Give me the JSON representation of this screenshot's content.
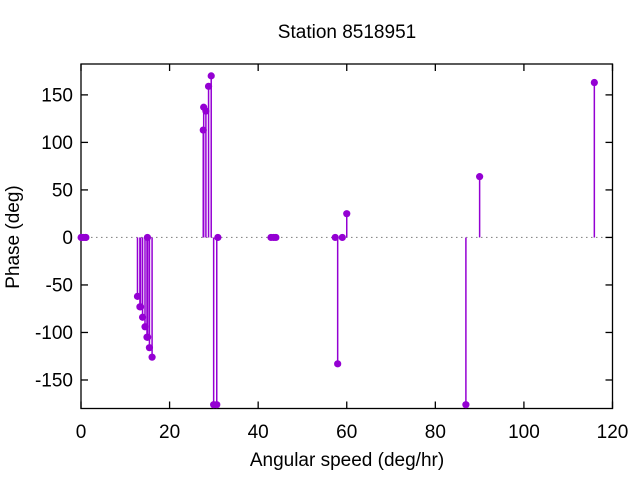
{
  "chart_data": {
    "type": "stem",
    "title": "Station 8518951",
    "xlabel": "Angular speed (deg/hr)",
    "ylabel": "Phase (deg)",
    "xlim": [
      0,
      120
    ],
    "ylim": [
      -180,
      182.5
    ],
    "xticks": [
      0,
      20,
      40,
      60,
      80,
      100,
      120
    ],
    "yticks": [
      -150,
      -100,
      -50,
      0,
      50,
      100,
      150
    ],
    "grid": false,
    "legend": "none",
    "zero_line": true,
    "series": [
      {
        "name": "phase",
        "style": "impulses-with-points",
        "points": [
          [
            0.04,
            0
          ],
          [
            0.08,
            0
          ],
          [
            0.54,
            0
          ],
          [
            1.02,
            0
          ],
          [
            1.1,
            0
          ],
          [
            12.75,
            -62
          ],
          [
            13.3,
            -73
          ],
          [
            13.45,
            -73
          ],
          [
            13.9,
            -84
          ],
          [
            14.45,
            -94
          ],
          [
            14.9,
            -105
          ],
          [
            15.0,
            0
          ],
          [
            15.05,
            -105
          ],
          [
            15.45,
            -116
          ],
          [
            16.05,
            -126
          ],
          [
            27.6,
            113
          ],
          [
            27.7,
            137
          ],
          [
            28.2,
            133
          ],
          [
            28.8,
            159
          ],
          [
            29.4,
            170
          ],
          [
            29.95,
            -176
          ],
          [
            30.65,
            -176
          ],
          [
            30.9,
            0
          ],
          [
            42.9,
            0
          ],
          [
            43.5,
            0
          ],
          [
            44.0,
            0
          ],
          [
            57.4,
            0
          ],
          [
            57.95,
            -133
          ],
          [
            59.0,
            0
          ],
          [
            60.0,
            25
          ],
          [
            86.9,
            -176
          ],
          [
            90.0,
            64
          ],
          [
            115.9,
            163
          ]
        ]
      }
    ]
  },
  "colors": {
    "series": "#9400d3",
    "axis": "#000000",
    "zero_line": "#8a8a8a",
    "text": "#000000"
  }
}
